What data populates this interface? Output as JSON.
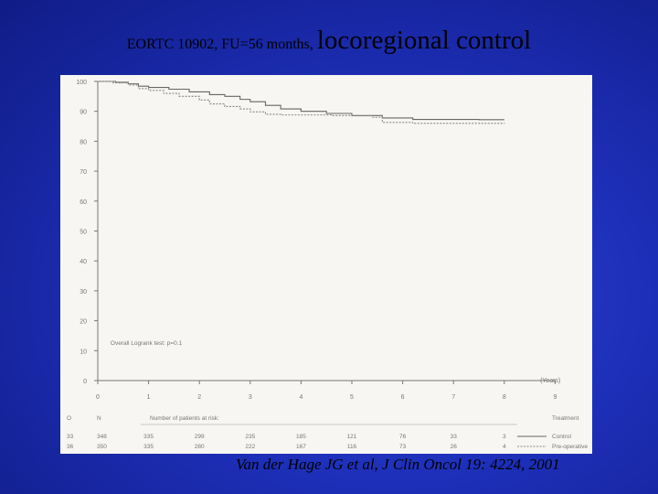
{
  "title": {
    "part1": "EORTC 10902, FU=56 months,",
    "part2": "locoregional control"
  },
  "citation": "Van der Hage JG et al, J Clin Oncol 19: 4224, 2001",
  "chart_data": {
    "type": "line",
    "ylim": [
      0,
      100
    ],
    "xlim": [
      0,
      9
    ],
    "yticks": [
      "0",
      "10",
      "20",
      "30",
      "40",
      "50",
      "60",
      "70",
      "80",
      "90",
      "100"
    ],
    "xticks": [
      "0",
      "1",
      "2",
      "3",
      "4",
      "5",
      "6",
      "7",
      "8",
      "9"
    ],
    "xunit": "(Years)",
    "annotation": "Overall Logrank test: p=0.1",
    "series": [
      {
        "name": "Control",
        "dash": false,
        "points": [
          [
            0,
            100
          ],
          [
            0.35,
            99.7
          ],
          [
            0.6,
            99.2
          ],
          [
            0.8,
            98.4
          ],
          [
            1.0,
            98
          ],
          [
            1.4,
            97.4
          ],
          [
            1.8,
            96.5
          ],
          [
            2.2,
            95.6
          ],
          [
            2.5,
            95
          ],
          [
            2.8,
            94
          ],
          [
            3.0,
            93.2
          ],
          [
            3.3,
            92
          ],
          [
            3.6,
            90.8
          ],
          [
            4.0,
            90
          ],
          [
            4.5,
            89.3
          ],
          [
            5.0,
            88.6
          ],
          [
            5.6,
            87.8
          ],
          [
            6.2,
            87.3
          ],
          [
            7.5,
            87.2
          ],
          [
            8.0,
            87.2
          ]
        ]
      },
      {
        "name": "Pre-operative",
        "dash": true,
        "points": [
          [
            0,
            100
          ],
          [
            0.3,
            99.5
          ],
          [
            0.6,
            98.8
          ],
          [
            0.8,
            97.6
          ],
          [
            1.0,
            97
          ],
          [
            1.3,
            96
          ],
          [
            1.6,
            95
          ],
          [
            2.0,
            93.8
          ],
          [
            2.2,
            92.5
          ],
          [
            2.5,
            91.6
          ],
          [
            2.8,
            90.8
          ],
          [
            3.0,
            89.8
          ],
          [
            3.3,
            89
          ],
          [
            3.6,
            88.8
          ],
          [
            4.2,
            88.8
          ],
          [
            4.6,
            88.6
          ],
          [
            5.0,
            88.5
          ],
          [
            5.4,
            88
          ],
          [
            5.6,
            86.3
          ],
          [
            6.2,
            86
          ],
          [
            7.0,
            86
          ],
          [
            8.0,
            85.9
          ]
        ]
      }
    ],
    "risk_table": {
      "title": "Number of patients at risk:",
      "header_o": "O",
      "header_n": "N",
      "header_treatment": "Treatment",
      "rows": [
        {
          "o": "33",
          "n": "348",
          "counts": [
            "335",
            "299",
            "235",
            "185",
            "121",
            "76",
            "33",
            "3"
          ],
          "treatment": "Control"
        },
        {
          "o": "36",
          "n": "350",
          "counts": [
            "335",
            "280",
            "222",
            "167",
            "116",
            "73",
            "26",
            "4"
          ],
          "treatment": "Pre-operative"
        }
      ]
    }
  }
}
